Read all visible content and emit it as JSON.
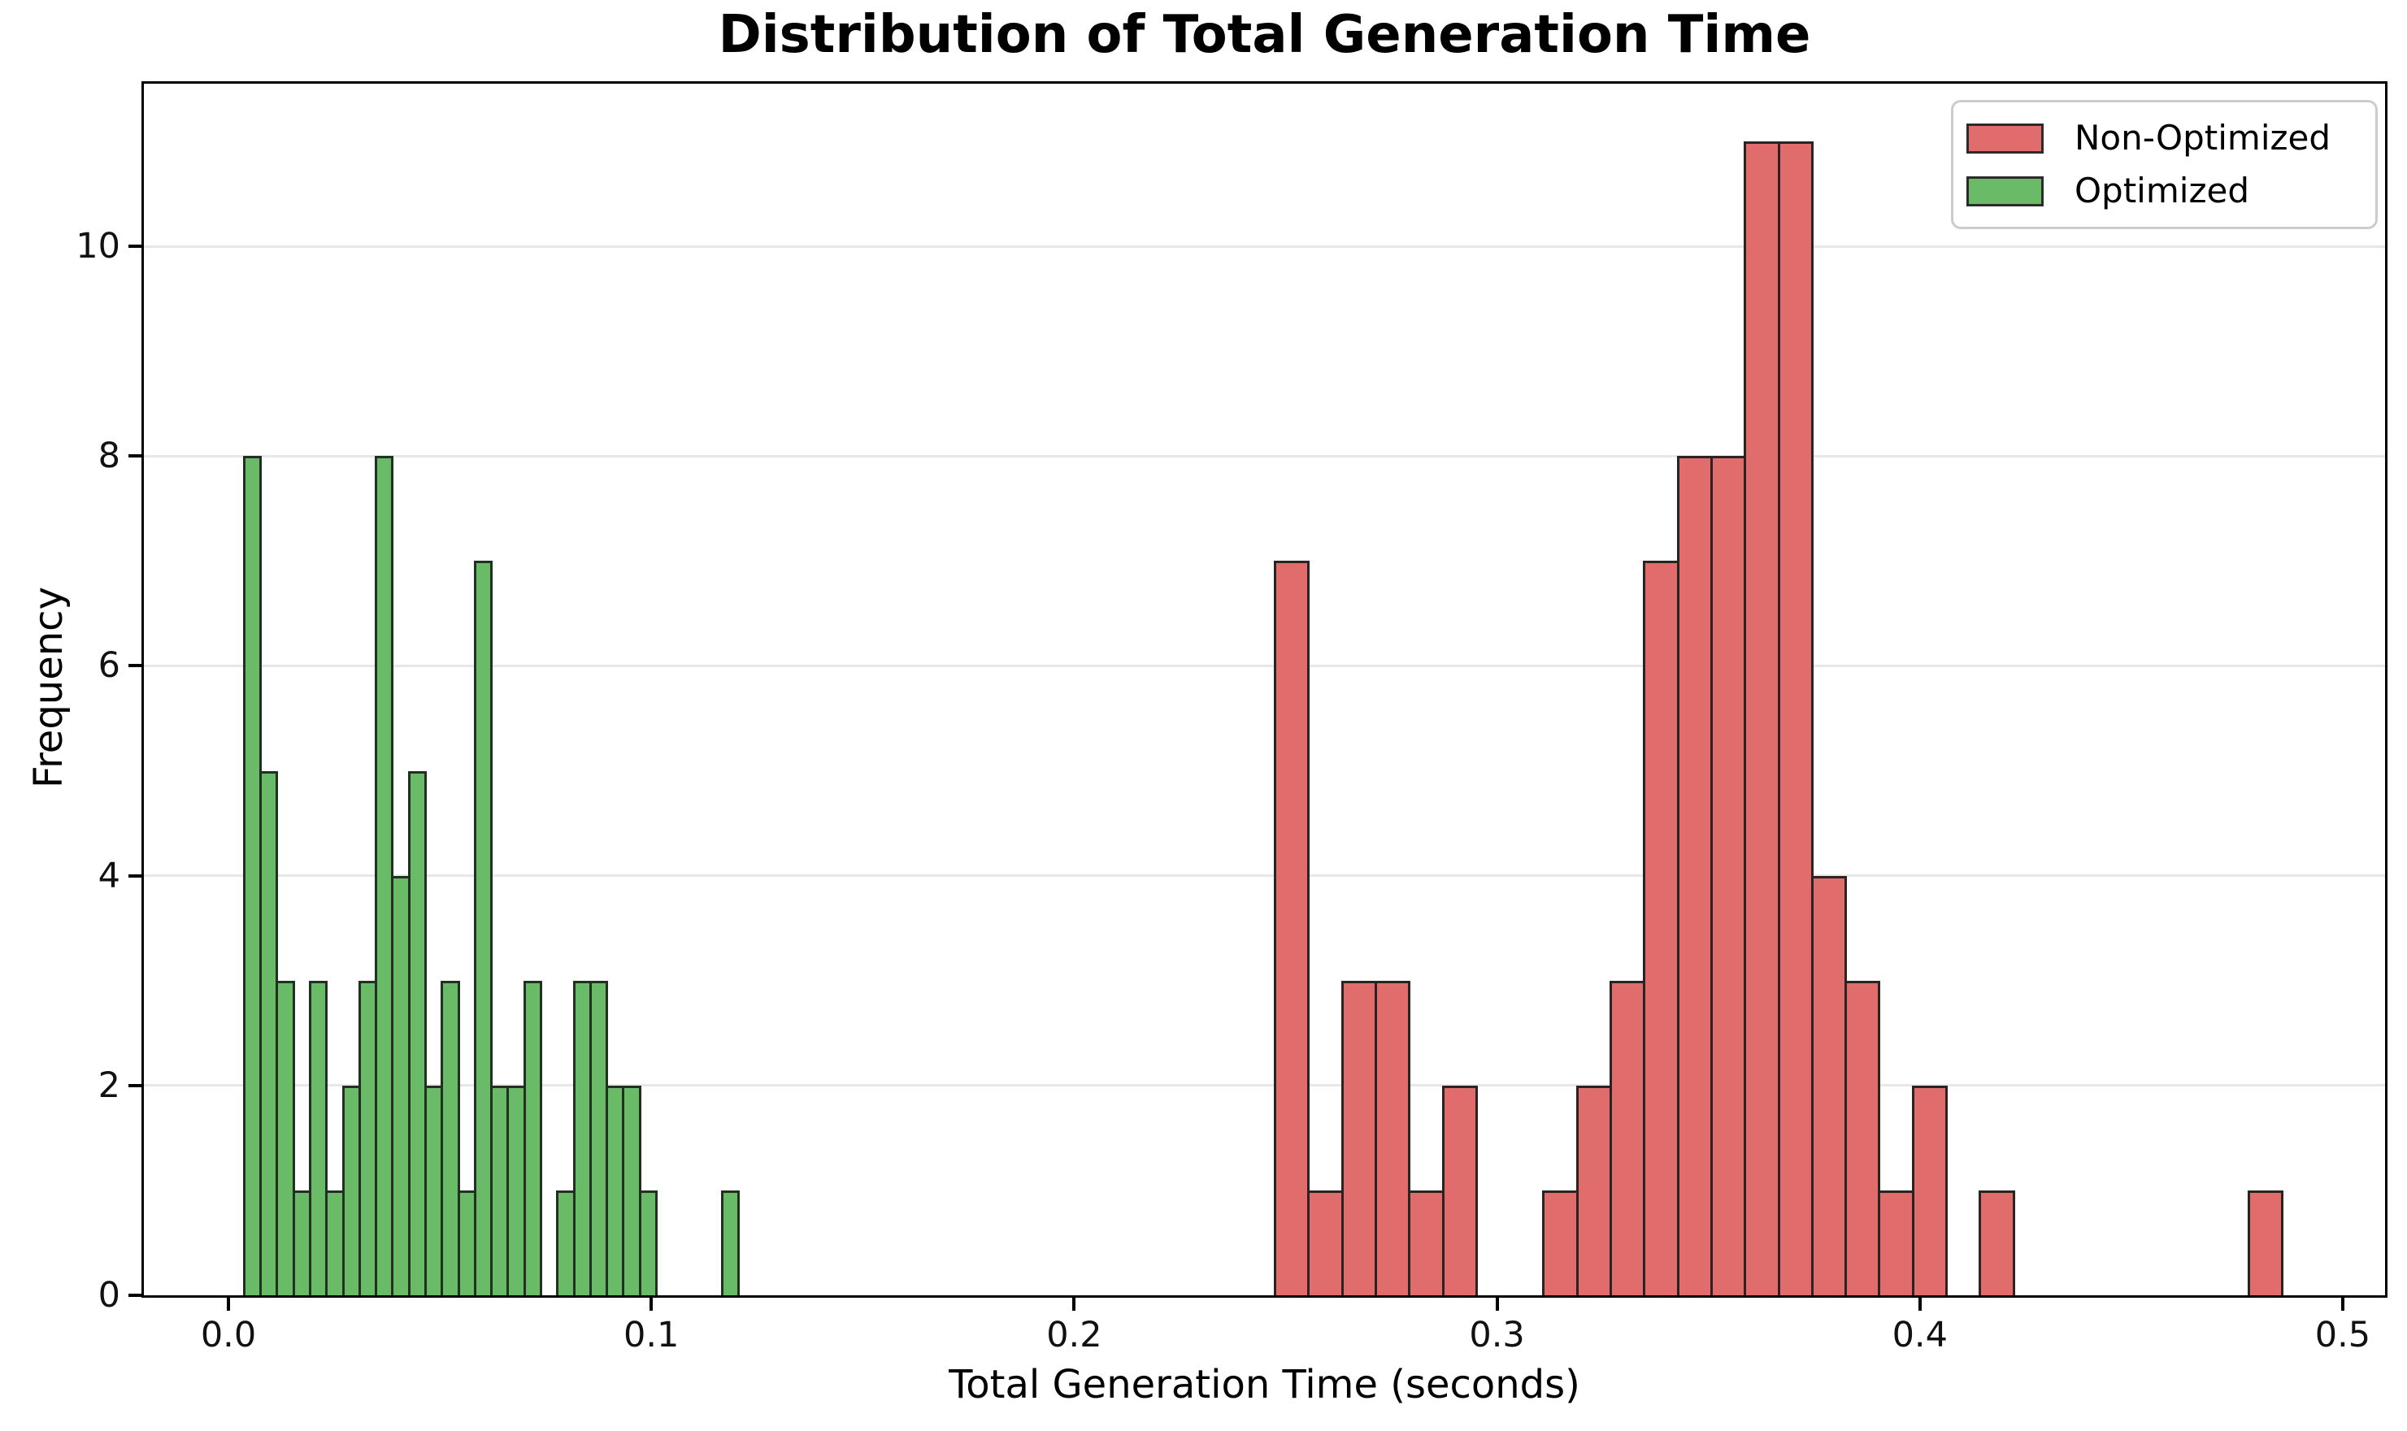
{
  "chart_data": {
    "type": "bar",
    "subtype": "histogram",
    "title": "Distribution of Total Generation Time",
    "xlabel": "Total Generation Time (seconds)",
    "ylabel": "Frequency",
    "xlim": [
      -0.02,
      0.51
    ],
    "ylim": [
      0,
      11.55
    ],
    "x_tick_values": [
      0.0,
      0.1,
      0.2,
      0.3,
      0.4,
      0.5
    ],
    "x_tick_labels": [
      "0.0",
      "0.1",
      "0.2",
      "0.3",
      "0.4",
      "0.5"
    ],
    "y_tick_values": [
      0,
      2,
      4,
      6,
      8,
      10
    ],
    "y_tick_labels": [
      "0",
      "2",
      "4",
      "6",
      "8",
      "10"
    ],
    "grid": {
      "axis": "y",
      "color": "#e7e7e7"
    },
    "background": "#ffffff",
    "series": [
      {
        "name": "Non-Optimized",
        "color": "#e06c6c",
        "edge_color": "#2b2222",
        "bin_start": 0.2475,
        "bin_width": 0.00794,
        "counts": [
          7,
          1,
          3,
          3,
          1,
          2,
          0,
          0,
          1,
          2,
          3,
          7,
          8,
          8,
          11,
          11,
          4,
          3,
          1,
          2,
          0,
          1,
          0,
          0,
          0,
          0,
          0,
          0,
          0,
          1
        ]
      },
      {
        "name": "Optimized",
        "color": "#69bb67",
        "edge_color": "#223022",
        "bin_start": 0.0037,
        "bin_width": 0.0039,
        "counts": [
          8,
          5,
          3,
          1,
          3,
          1,
          2,
          3,
          8,
          4,
          5,
          2,
          3,
          1,
          7,
          2,
          2,
          3,
          0,
          1,
          3,
          3,
          2,
          2,
          1,
          0,
          0,
          0,
          0,
          1
        ]
      }
    ],
    "legend": {
      "position": "upper-right",
      "entries": [
        {
          "label": "Non-Optimized",
          "color": "#e06c6c"
        },
        {
          "label": "Optimized",
          "color": "#69bb67"
        }
      ]
    }
  }
}
